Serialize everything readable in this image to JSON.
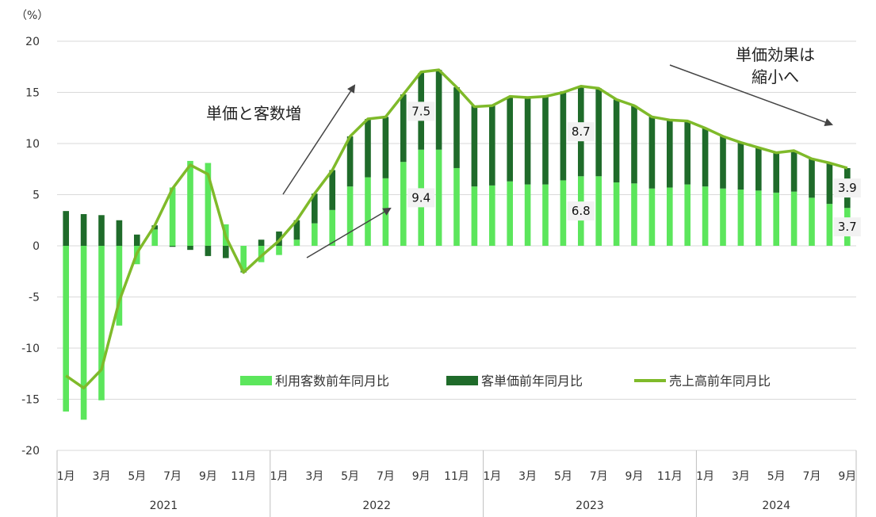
{
  "chart_data": {
    "type": "bar",
    "ylabel": "（%）",
    "ylim": [
      -20,
      20
    ],
    "yticks": [
      20,
      15,
      10,
      5,
      0,
      -5,
      -10,
      -15,
      -20
    ],
    "negative_tick_color": "#e00000",
    "grid": true,
    "legend_position": "center-lower",
    "years": [
      {
        "label": "2021",
        "months": 12
      },
      {
        "label": "2022",
        "months": 12
      },
      {
        "label": "2023",
        "months": 12
      },
      {
        "label": "2024",
        "months": 9
      }
    ],
    "x_tick_labels": [
      "1月",
      "",
      "3月",
      "",
      "5月",
      "",
      "7月",
      "",
      "9月",
      "",
      "11月",
      "",
      "1月",
      "",
      "3月",
      "",
      "5月",
      "",
      "7月",
      "",
      "9月",
      "",
      "11月",
      "",
      "1月",
      "",
      "3月",
      "",
      "5月",
      "",
      "7月",
      "",
      "9月",
      "",
      "11月",
      "",
      "1月",
      "",
      "3月",
      "",
      "5月",
      "",
      "7月",
      "",
      "9月"
    ],
    "series": [
      {
        "name": "利用客数前年同月比",
        "type": "bar",
        "color": "#5ce65c",
        "values": [
          -16.2,
          -17.0,
          -15.1,
          -7.8,
          -1.8,
          1.6,
          5.7,
          8.3,
          8.1,
          2.1,
          -2.5,
          -1.6,
          -0.9,
          0.6,
          2.2,
          3.5,
          5.8,
          6.7,
          6.6,
          8.2,
          9.4,
          9.4,
          7.6,
          5.8,
          5.9,
          6.3,
          6.0,
          6.0,
          6.4,
          6.8,
          6.8,
          6.2,
          6.1,
          5.6,
          5.7,
          6.0,
          5.8,
          5.6,
          5.5,
          5.4,
          5.2,
          5.3,
          4.7,
          4.1,
          3.7
        ]
      },
      {
        "name": "客単価前年同月比",
        "type": "bar",
        "color": "#1f6b2a",
        "values": [
          3.4,
          3.1,
          3.0,
          2.5,
          1.1,
          0.4,
          -0.1,
          -0.4,
          -1.0,
          -1.2,
          -0.1,
          0.6,
          1.4,
          1.9,
          2.9,
          3.9,
          4.9,
          5.7,
          6.0,
          6.6,
          7.5,
          7.8,
          7.9,
          7.9,
          7.8,
          8.2,
          8.5,
          8.6,
          8.7,
          8.7,
          8.6,
          8.1,
          7.6,
          7.0,
          6.6,
          6.2,
          5.7,
          5.1,
          4.6,
          4.2,
          3.9,
          4.0,
          3.8,
          4.0,
          3.9
        ]
      },
      {
        "name": "売上高前年同月比",
        "type": "line",
        "color": "#7fba2a",
        "values": [
          -12.7,
          -13.9,
          -12.1,
          -5.4,
          -0.7,
          2.0,
          5.6,
          7.9,
          7.0,
          0.9,
          -2.6,
          -1.0,
          0.5,
          2.5,
          5.1,
          7.4,
          10.7,
          12.4,
          12.6,
          14.8,
          17.0,
          17.2,
          15.5,
          13.6,
          13.7,
          14.6,
          14.5,
          14.6,
          15.0,
          15.6,
          15.4,
          14.3,
          13.7,
          12.6,
          12.3,
          12.2,
          11.5,
          10.7,
          10.1,
          9.6,
          9.1,
          9.3,
          8.5,
          8.1,
          7.6
        ]
      }
    ],
    "data_labels": [
      {
        "series": 1,
        "index": 20,
        "text": "7.5"
      },
      {
        "series": 0,
        "index": 20,
        "text": "9.4"
      },
      {
        "series": 1,
        "index": 29,
        "text": "8.7"
      },
      {
        "series": 0,
        "index": 29,
        "text": "6.8"
      },
      {
        "series": 1,
        "index": 44,
        "text": "3.9"
      },
      {
        "series": 0,
        "index": 44,
        "text": "3.7"
      }
    ],
    "annotations": [
      {
        "text": "単価と客数増"
      },
      {
        "text_lines": [
          "単価効果は",
          "縮小へ"
        ]
      }
    ]
  }
}
